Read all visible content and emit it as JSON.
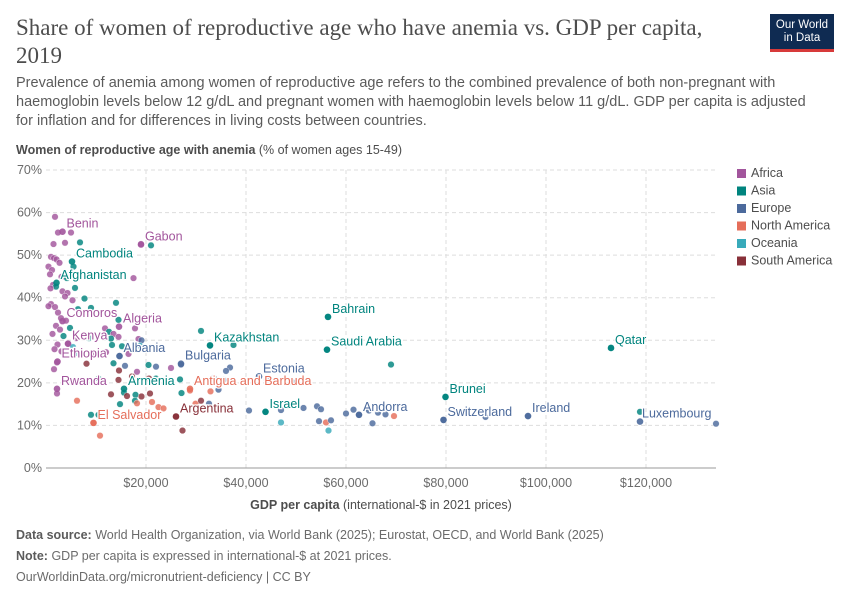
{
  "header": {
    "title": "Share of women of reproductive age who have anemia vs. GDP per capita, 2019",
    "subtitle": "Prevalence of anemia among women of reproductive age refers to the combined prevalence of both non-pregnant with haemoglobin levels below 12 g/dL and pregnant women with haemoglobin levels below 11 g/dL. GDP per capita is adjusted for inflation and for differences in living costs between countries.",
    "logo_line1": "Our World",
    "logo_line2": "in Data"
  },
  "footer": {
    "source_label": "Data source:",
    "source_text": "World Health Organization, via World Bank (2025); Eurostat, OECD, and World Bank (2025)",
    "note_label": "Note:",
    "note_text": "GDP per capita is expressed in international-$ at 2021 prices.",
    "url": "OurWorldinData.org/micronutrient-deficiency | CC BY"
  },
  "colors": {
    "Africa": "#a2559c",
    "Asia": "#00847e",
    "Europe": "#4c6a9c",
    "North America": "#e56e5a",
    "Oceania": "#38aaba",
    "South America": "#883039"
  },
  "chart_data": {
    "type": "scatter",
    "title": "Share of women of reproductive age who have anemia vs. GDP per capita, 2019",
    "ylabel_bold": "Women of reproductive age with anemia",
    "ylabel_rest": "(% of women ages 15-49)",
    "xlabel_bold": "GDP per capita",
    "xlabel_rest": "(international-$ in 2021 prices)",
    "xlim": [
      0,
      134000
    ],
    "ylim": [
      0,
      70
    ],
    "x_ticks": [
      20000,
      40000,
      60000,
      80000,
      100000,
      120000
    ],
    "x_tick_labels": [
      "$20,000",
      "$40,000",
      "$60,000",
      "$80,000",
      "$100,000",
      "$120,000"
    ],
    "y_ticks": [
      0,
      10,
      20,
      30,
      40,
      50,
      60,
      70
    ],
    "y_tick_labels": [
      "0%",
      "10%",
      "20%",
      "30%",
      "40%",
      "50%",
      "60%",
      "70%"
    ],
    "legend_position": "right",
    "legend": [
      "Africa",
      "Asia",
      "Europe",
      "North America",
      "Oceania",
      "South America"
    ],
    "labels": [
      {
        "name": "Benin",
        "x": 3300,
        "y": 55.5,
        "region": "Africa"
      },
      {
        "name": "Gabon",
        "x": 19000,
        "y": 52.5,
        "region": "Africa"
      },
      {
        "name": "Cambodia",
        "x": 5200,
        "y": 48.5,
        "region": "Asia"
      },
      {
        "name": "Afghanistan",
        "x": 2100,
        "y": 43.5,
        "region": "Asia"
      },
      {
        "name": "Bahrain",
        "x": 56400,
        "y": 35.5,
        "region": "Asia"
      },
      {
        "name": "Comoros",
        "x": 3300,
        "y": 34.5,
        "region": "Africa"
      },
      {
        "name": "Algeria",
        "x": 14600,
        "y": 33.2,
        "region": "Africa"
      },
      {
        "name": "Kazakhstan",
        "x": 32800,
        "y": 28.8,
        "region": "Asia"
      },
      {
        "name": "Saudi Arabia",
        "x": 56200,
        "y": 27.8,
        "region": "Asia"
      },
      {
        "name": "Qatar",
        "x": 113000,
        "y": 28.2,
        "region": "Asia"
      },
      {
        "name": "Kenya",
        "x": 4400,
        "y": 29.2,
        "region": "Africa"
      },
      {
        "name": "Albania",
        "x": 14700,
        "y": 26.3,
        "region": "Europe"
      },
      {
        "name": "Ethiopia",
        "x": 2300,
        "y": 25.0,
        "region": "Africa"
      },
      {
        "name": "Bulgaria",
        "x": 27000,
        "y": 24.5,
        "region": "Europe"
      },
      {
        "name": "Estonia",
        "x": 42600,
        "y": 21.5,
        "region": "Europe"
      },
      {
        "name": "Rwanda",
        "x": 2200,
        "y": 18.6,
        "region": "Africa"
      },
      {
        "name": "Armenia",
        "x": 15600,
        "y": 18.6,
        "region": "Asia"
      },
      {
        "name": "Antigua and Barbuda",
        "x": 28800,
        "y": 18.6,
        "region": "North America"
      },
      {
        "name": "Brunei",
        "x": 79900,
        "y": 16.7,
        "region": "Asia"
      },
      {
        "name": "Israel",
        "x": 43900,
        "y": 13.2,
        "region": "Asia"
      },
      {
        "name": "Andorra",
        "x": 62600,
        "y": 12.5,
        "region": "Europe"
      },
      {
        "name": "Switzerland",
        "x": 79500,
        "y": 11.3,
        "region": "Europe"
      },
      {
        "name": "Ireland",
        "x": 96400,
        "y": 12.2,
        "region": "Europe"
      },
      {
        "name": "Argentina",
        "x": 26000,
        "y": 12.1,
        "region": "South America"
      },
      {
        "name": "El Salvador",
        "x": 9500,
        "y": 10.6,
        "region": "North America"
      },
      {
        "name": "Luxembourg",
        "x": 118800,
        "y": 10.9,
        "region": "Europe"
      }
    ],
    "points": [
      {
        "x": 1800,
        "y": 59.0,
        "r": "Africa"
      },
      {
        "x": 2400,
        "y": 55.3,
        "r": "Africa"
      },
      {
        "x": 5000,
        "y": 55.3,
        "r": "Africa"
      },
      {
        "x": 3800,
        "y": 52.9,
        "r": "Africa"
      },
      {
        "x": 1500,
        "y": 52.6,
        "r": "Africa"
      },
      {
        "x": 6800,
        "y": 53.0,
        "r": "Asia"
      },
      {
        "x": 19000,
        "y": 52.6,
        "r": "Africa"
      },
      {
        "x": 21000,
        "y": 52.3,
        "r": "Asia"
      },
      {
        "x": 1000,
        "y": 49.6,
        "r": "Africa"
      },
      {
        "x": 1600,
        "y": 49.3,
        "r": "Africa"
      },
      {
        "x": 2100,
        "y": 49.0,
        "r": "Africa"
      },
      {
        "x": 2700,
        "y": 48.2,
        "r": "Africa"
      },
      {
        "x": 500,
        "y": 47.3,
        "r": "Africa"
      },
      {
        "x": 1200,
        "y": 46.5,
        "r": "Africa"
      },
      {
        "x": 5500,
        "y": 47.3,
        "r": "Asia"
      },
      {
        "x": 800,
        "y": 45.5,
        "r": "Africa"
      },
      {
        "x": 3100,
        "y": 44.9,
        "r": "Africa"
      },
      {
        "x": 4200,
        "y": 44.6,
        "r": "Asia"
      },
      {
        "x": 17500,
        "y": 44.6,
        "r": "Africa"
      },
      {
        "x": 1400,
        "y": 43.0,
        "r": "Africa"
      },
      {
        "x": 2000,
        "y": 42.6,
        "r": "Asia"
      },
      {
        "x": 5800,
        "y": 42.3,
        "r": "Asia"
      },
      {
        "x": 900,
        "y": 42.2,
        "r": "Africa"
      },
      {
        "x": 3300,
        "y": 41.5,
        "r": "Africa"
      },
      {
        "x": 4300,
        "y": 41.1,
        "r": "Africa"
      },
      {
        "x": 3800,
        "y": 40.3,
        "r": "Africa"
      },
      {
        "x": 7700,
        "y": 39.8,
        "r": "Asia"
      },
      {
        "x": 5300,
        "y": 39.4,
        "r": "Africa"
      },
      {
        "x": 14000,
        "y": 38.8,
        "r": "Asia"
      },
      {
        "x": 1000,
        "y": 38.5,
        "r": "Africa"
      },
      {
        "x": 500,
        "y": 38.0,
        "r": "Africa"
      },
      {
        "x": 1800,
        "y": 37.8,
        "r": "Africa"
      },
      {
        "x": 6400,
        "y": 37.3,
        "r": "Asia"
      },
      {
        "x": 9000,
        "y": 37.6,
        "r": "Asia"
      },
      {
        "x": 2400,
        "y": 36.5,
        "r": "Africa"
      },
      {
        "x": 3000,
        "y": 35.2,
        "r": "Africa"
      },
      {
        "x": 56400,
        "y": 35.5,
        "r": "Asia"
      },
      {
        "x": 4000,
        "y": 34.6,
        "r": "Africa"
      },
      {
        "x": 14500,
        "y": 34.8,
        "r": "Asia"
      },
      {
        "x": 2000,
        "y": 33.4,
        "r": "Africa"
      },
      {
        "x": 2800,
        "y": 32.5,
        "r": "Africa"
      },
      {
        "x": 4800,
        "y": 32.9,
        "r": "Asia"
      },
      {
        "x": 11800,
        "y": 32.8,
        "r": "Africa"
      },
      {
        "x": 12600,
        "y": 32.0,
        "r": "Asia"
      },
      {
        "x": 13500,
        "y": 31.5,
        "r": "Africa"
      },
      {
        "x": 17800,
        "y": 32.8,
        "r": "Africa"
      },
      {
        "x": 31000,
        "y": 32.2,
        "r": "Asia"
      },
      {
        "x": 1300,
        "y": 31.5,
        "r": "Africa"
      },
      {
        "x": 3500,
        "y": 31.0,
        "r": "Asia"
      },
      {
        "x": 6000,
        "y": 30.5,
        "r": "Africa"
      },
      {
        "x": 8600,
        "y": 30.5,
        "r": "Asia"
      },
      {
        "x": 11500,
        "y": 31.2,
        "r": "Africa"
      },
      {
        "x": 13000,
        "y": 30.4,
        "r": "Asia"
      },
      {
        "x": 18500,
        "y": 30.3,
        "r": "Africa"
      },
      {
        "x": 14500,
        "y": 30.8,
        "r": "Africa"
      },
      {
        "x": 19100,
        "y": 30.0,
        "r": "Europe"
      },
      {
        "x": 2300,
        "y": 29.0,
        "r": "Africa"
      },
      {
        "x": 4400,
        "y": 29.2,
        "r": "Africa"
      },
      {
        "x": 5400,
        "y": 28.4,
        "r": "Oceania"
      },
      {
        "x": 13200,
        "y": 28.9,
        "r": "Asia"
      },
      {
        "x": 15200,
        "y": 28.6,
        "r": "Asia"
      },
      {
        "x": 18800,
        "y": 28.7,
        "r": "Oceania"
      },
      {
        "x": 32800,
        "y": 28.8,
        "r": "Asia"
      },
      {
        "x": 37500,
        "y": 28.9,
        "r": "Asia"
      },
      {
        "x": 56200,
        "y": 27.8,
        "r": "Asia"
      },
      {
        "x": 113000,
        "y": 28.2,
        "r": "Asia"
      },
      {
        "x": 1700,
        "y": 27.9,
        "r": "Africa"
      },
      {
        "x": 3100,
        "y": 27.4,
        "r": "Africa"
      },
      {
        "x": 6300,
        "y": 27.0,
        "r": "Oceania"
      },
      {
        "x": 9600,
        "y": 26.9,
        "r": "Africa"
      },
      {
        "x": 12000,
        "y": 27.2,
        "r": "Africa"
      },
      {
        "x": 14700,
        "y": 26.3,
        "r": "Europe"
      },
      {
        "x": 16500,
        "y": 26.8,
        "r": "Africa"
      },
      {
        "x": 2200,
        "y": 24.8,
        "r": "Africa"
      },
      {
        "x": 8100,
        "y": 24.5,
        "r": "South America"
      },
      {
        "x": 13500,
        "y": 24.6,
        "r": "Asia"
      },
      {
        "x": 15800,
        "y": 24.0,
        "r": "Europe"
      },
      {
        "x": 20500,
        "y": 24.2,
        "r": "Asia"
      },
      {
        "x": 22000,
        "y": 23.8,
        "r": "Europe"
      },
      {
        "x": 25000,
        "y": 23.5,
        "r": "Africa"
      },
      {
        "x": 27000,
        "y": 24.3,
        "r": "Europe"
      },
      {
        "x": 36800,
        "y": 23.6,
        "r": "Europe"
      },
      {
        "x": 69000,
        "y": 24.3,
        "r": "Asia"
      },
      {
        "x": 1600,
        "y": 23.2,
        "r": "Africa"
      },
      {
        "x": 14600,
        "y": 22.9,
        "r": "South America"
      },
      {
        "x": 18200,
        "y": 22.6,
        "r": "Africa"
      },
      {
        "x": 36000,
        "y": 22.8,
        "r": "Europe"
      },
      {
        "x": 10500,
        "y": 21.0,
        "r": "Asia"
      },
      {
        "x": 14500,
        "y": 20.7,
        "r": "South America"
      },
      {
        "x": 17200,
        "y": 21.5,
        "r": "South America"
      },
      {
        "x": 20600,
        "y": 21.0,
        "r": "South America"
      },
      {
        "x": 22000,
        "y": 21.0,
        "r": "Asia"
      },
      {
        "x": 26800,
        "y": 20.8,
        "r": "Asia"
      },
      {
        "x": 33500,
        "y": 21.2,
        "r": "Europe"
      },
      {
        "x": 35500,
        "y": 20.7,
        "r": "Europe"
      },
      {
        "x": 42600,
        "y": 21.5,
        "r": "Europe"
      },
      {
        "x": 44200,
        "y": 20.8,
        "r": "Europe"
      },
      {
        "x": 49200,
        "y": 20.2,
        "r": "Europe"
      },
      {
        "x": 2200,
        "y": 17.5,
        "r": "Africa"
      },
      {
        "x": 13000,
        "y": 17.3,
        "r": "South America"
      },
      {
        "x": 15600,
        "y": 17.7,
        "r": "Asia"
      },
      {
        "x": 16200,
        "y": 16.9,
        "r": "South America"
      },
      {
        "x": 17900,
        "y": 17.2,
        "r": "Asia"
      },
      {
        "x": 19100,
        "y": 16.8,
        "r": "South America"
      },
      {
        "x": 20800,
        "y": 17.5,
        "r": "South America"
      },
      {
        "x": 27100,
        "y": 17.6,
        "r": "Asia"
      },
      {
        "x": 28800,
        "y": 18.2,
        "r": "North America"
      },
      {
        "x": 32900,
        "y": 18.0,
        "r": "North America"
      },
      {
        "x": 34500,
        "y": 18.4,
        "r": "Europe"
      },
      {
        "x": 6200,
        "y": 15.8,
        "r": "North America"
      },
      {
        "x": 14800,
        "y": 15.0,
        "r": "Asia"
      },
      {
        "x": 17800,
        "y": 15.8,
        "r": "Asia"
      },
      {
        "x": 21200,
        "y": 15.5,
        "r": "North America"
      },
      {
        "x": 18200,
        "y": 15.2,
        "r": "North America"
      },
      {
        "x": 22500,
        "y": 14.3,
        "r": "North America"
      },
      {
        "x": 23500,
        "y": 14.0,
        "r": "North America"
      },
      {
        "x": 29900,
        "y": 15.1,
        "r": "North America"
      },
      {
        "x": 31000,
        "y": 15.8,
        "r": "South America"
      },
      {
        "x": 32600,
        "y": 15.1,
        "r": "Europe"
      },
      {
        "x": 26000,
        "y": 12.1,
        "r": "South America"
      },
      {
        "x": 40600,
        "y": 13.5,
        "r": "Europe"
      },
      {
        "x": 43900,
        "y": 13.2,
        "r": "Asia"
      },
      {
        "x": 47000,
        "y": 13.6,
        "r": "Europe"
      },
      {
        "x": 48200,
        "y": 14.6,
        "r": "Europe"
      },
      {
        "x": 51500,
        "y": 14.1,
        "r": "Europe"
      },
      {
        "x": 54200,
        "y": 14.5,
        "r": "Europe"
      },
      {
        "x": 55000,
        "y": 13.8,
        "r": "Europe"
      },
      {
        "x": 60000,
        "y": 12.8,
        "r": "Europe"
      },
      {
        "x": 61500,
        "y": 13.7,
        "r": "Europe"
      },
      {
        "x": 62600,
        "y": 12.5,
        "r": "Europe"
      },
      {
        "x": 64600,
        "y": 13.5,
        "r": "Europe"
      },
      {
        "x": 66400,
        "y": 13.0,
        "r": "Europe"
      },
      {
        "x": 67900,
        "y": 12.6,
        "r": "Europe"
      },
      {
        "x": 69600,
        "y": 12.2,
        "r": "North America"
      },
      {
        "x": 79900,
        "y": 16.7,
        "r": "Asia"
      },
      {
        "x": 79500,
        "y": 11.3,
        "r": "Europe"
      },
      {
        "x": 96400,
        "y": 12.2,
        "r": "Europe"
      },
      {
        "x": 87900,
        "y": 12.0,
        "r": "Europe"
      },
      {
        "x": 118800,
        "y": 13.2,
        "r": "Asia"
      },
      {
        "x": 134000,
        "y": 10.4,
        "r": "Europe"
      },
      {
        "x": 9000,
        "y": 12.5,
        "r": "Asia"
      },
      {
        "x": 10500,
        "y": 12.5,
        "r": "Asia"
      },
      {
        "x": 9500,
        "y": 10.6,
        "r": "North America"
      },
      {
        "x": 10800,
        "y": 7.6,
        "r": "North America"
      },
      {
        "x": 27300,
        "y": 8.8,
        "r": "South America"
      },
      {
        "x": 47000,
        "y": 10.7,
        "r": "Oceania"
      },
      {
        "x": 54600,
        "y": 11.0,
        "r": "Europe"
      },
      {
        "x": 56000,
        "y": 10.7,
        "r": "North America"
      },
      {
        "x": 56500,
        "y": 8.8,
        "r": "Oceania"
      },
      {
        "x": 57000,
        "y": 11.2,
        "r": "Europe"
      },
      {
        "x": 65300,
        "y": 10.5,
        "r": "Europe"
      }
    ]
  }
}
